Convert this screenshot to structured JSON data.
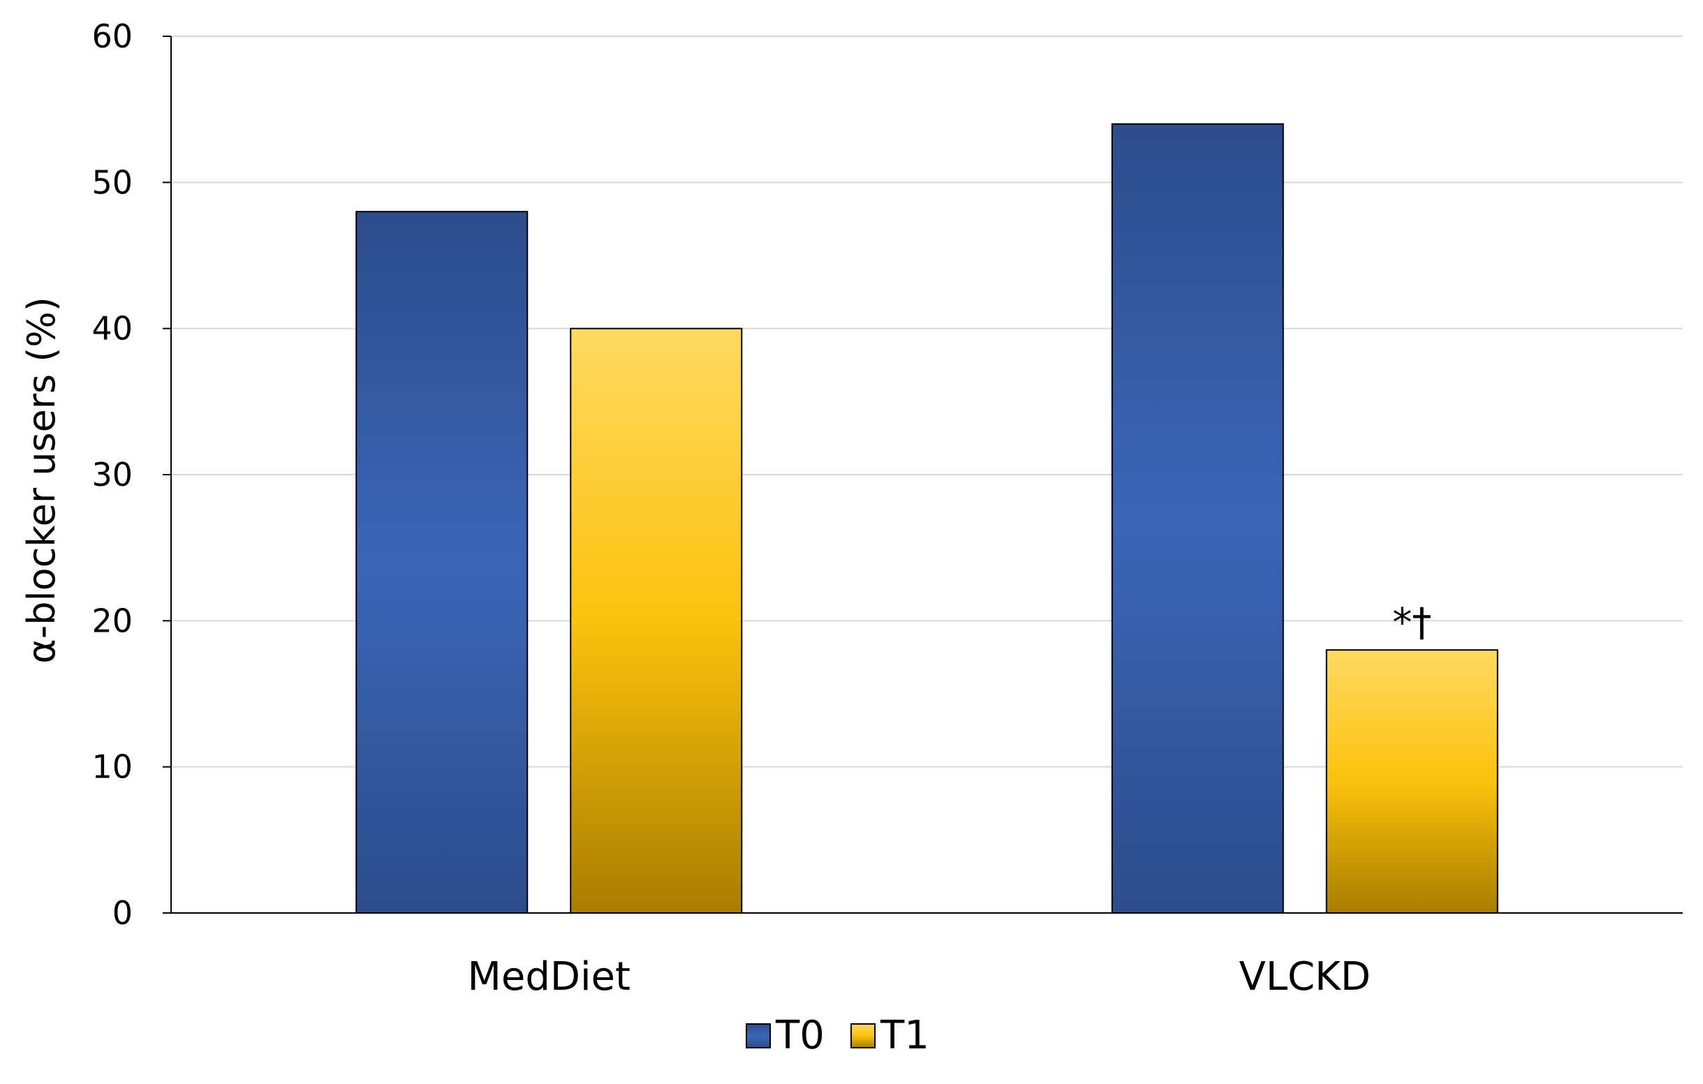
{
  "chart_data": {
    "type": "bar",
    "title": "",
    "xlabel": "",
    "ylabel": "α-blocker users (%)",
    "ylim": [
      0,
      60
    ],
    "yticks": [
      0,
      10,
      20,
      30,
      40,
      50,
      60
    ],
    "grid": true,
    "categories": [
      "MedDiet",
      "VLCKD"
    ],
    "series": [
      {
        "name": "T0",
        "values": [
          48,
          54
        ],
        "color": "#3A62B0"
      },
      {
        "name": "T1",
        "values": [
          40,
          18
        ],
        "color": "#FFC20E"
      }
    ],
    "annotations": [
      {
        "category": "VLCKD",
        "series": "T1",
        "text": "*†"
      }
    ],
    "legend_position": "bottom-center"
  }
}
